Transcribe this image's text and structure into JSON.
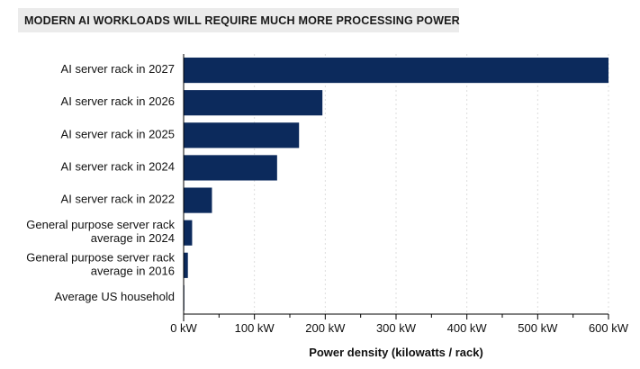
{
  "header": {
    "title": "MODERN AI WORKLOADS WILL REQUIRE MUCH MORE PROCESSING POWER"
  },
  "colors": {
    "bar": "#0c2a5c",
    "grid": "#dddddd",
    "axis": "#000000",
    "title_background": "#ebebeb"
  },
  "chart_data": {
    "type": "bar",
    "orientation": "horizontal",
    "title": "MODERN AI WORKLOADS WILL REQUIRE MUCH MORE PROCESSING POWER",
    "xlabel": "Power density (kilowatts / rack)",
    "ylabel": "",
    "categories": [
      [
        "AI server rack in 2027"
      ],
      [
        "AI server rack in 2026"
      ],
      [
        "AI server rack in 2025"
      ],
      [
        "AI server rack in 2024"
      ],
      [
        "AI server rack in 2022"
      ],
      [
        "General purpose server rack",
        "average in 2024"
      ],
      [
        "General purpose server rack",
        "average in 2016"
      ],
      [
        "Average US household"
      ]
    ],
    "values": [
      600,
      196,
      163,
      132,
      40,
      12,
      6,
      1
    ],
    "xlim": [
      0,
      600
    ],
    "x_ticks": [
      0,
      100,
      200,
      300,
      400,
      500,
      600
    ],
    "x_tick_labels": [
      "0 kW",
      "100 kW",
      "200 kW",
      "300 kW",
      "400 kW",
      "500 kW",
      "600 kW"
    ],
    "grid": "vertical dashed",
    "legend": "none"
  }
}
